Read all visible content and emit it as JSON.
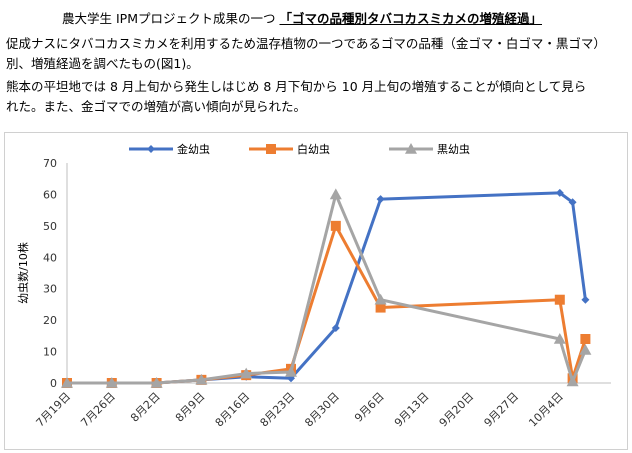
{
  "header": {
    "title_prefix": "農大学生 IPMプロジェクト成果の一つ",
    "title_highlight": "「ゴマの品種別タバコカスミカメの増殖経過」",
    "paragraph_lines": [
      "促成ナスにタバコカスミカメを利用するため温存植物の一つであるゴマの品種（金ゴマ・白ゴマ・黒ゴマ）",
      "別、増殖経過を調べたもの(図1)。",
      "熊本の平坦地では 8 月上旬から発生しはじめ 8 月下旬から 10 月上旬の増殖することが傾向として見ら",
      "れた。また、金ゴマでの増殖が高い傾向が見られた。"
    ]
  },
  "chart_data": {
    "type": "line",
    "ylabel": "幼虫数/10株",
    "ylim": [
      0,
      70
    ],
    "yticks": [
      0,
      10,
      20,
      30,
      40,
      50,
      60,
      70
    ],
    "xlim": [
      "7月19日",
      "10月12日"
    ],
    "xticks": [
      "7月19日",
      "7月26日",
      "8月2日",
      "8月9日",
      "8月16日",
      "8月23日",
      "8月30日",
      "9月6日",
      "9月13日",
      "9月20日",
      "9月27日",
      "10月4日"
    ],
    "grid": false,
    "legend_position": "top",
    "series": [
      {
        "name": "金幼虫",
        "color": "#4472C4",
        "marker": "diamond",
        "points": [
          {
            "x": "7月19日",
            "y": 0
          },
          {
            "x": "7月26日",
            "y": 0
          },
          {
            "x": "8月2日",
            "y": 0
          },
          {
            "x": "8月9日",
            "y": 1
          },
          {
            "x": "8月16日",
            "y": 2
          },
          {
            "x": "8月23日",
            "y": 1.5
          },
          {
            "x": "8月30日",
            "y": 17.5
          },
          {
            "x": "9月6日",
            "y": 58.5
          },
          {
            "x": "10月4日",
            "y": 60.5
          },
          {
            "x": "10月6日",
            "y": 57.5
          },
          {
            "x": "10月8日",
            "y": 26.5
          }
        ]
      },
      {
        "name": "白幼虫",
        "color": "#ED7D31",
        "marker": "square",
        "points": [
          {
            "x": "7月19日",
            "y": 0
          },
          {
            "x": "7月26日",
            "y": 0
          },
          {
            "x": "8月2日",
            "y": 0
          },
          {
            "x": "8月9日",
            "y": 1
          },
          {
            "x": "8月16日",
            "y": 2.5
          },
          {
            "x": "8月23日",
            "y": 4.5
          },
          {
            "x": "8月30日",
            "y": 50
          },
          {
            "x": "9月6日",
            "y": 24
          },
          {
            "x": "10月4日",
            "y": 26.5
          },
          {
            "x": "10月6日",
            "y": 1.5
          },
          {
            "x": "10月8日",
            "y": 14
          }
        ]
      },
      {
        "name": "黒幼虫",
        "color": "#A5A5A5",
        "marker": "triangle",
        "points": [
          {
            "x": "7月19日",
            "y": 0
          },
          {
            "x": "7月26日",
            "y": 0
          },
          {
            "x": "8月2日",
            "y": 0
          },
          {
            "x": "8月9日",
            "y": 1
          },
          {
            "x": "8月16日",
            "y": 3
          },
          {
            "x": "8月23日",
            "y": 3.5
          },
          {
            "x": "8月30日",
            "y": 60
          },
          {
            "x": "9月6日",
            "y": 26.5
          },
          {
            "x": "10月4日",
            "y": 14
          },
          {
            "x": "10月6日",
            "y": 0.5
          },
          {
            "x": "10月8日",
            "y": 10.5
          }
        ]
      }
    ]
  }
}
